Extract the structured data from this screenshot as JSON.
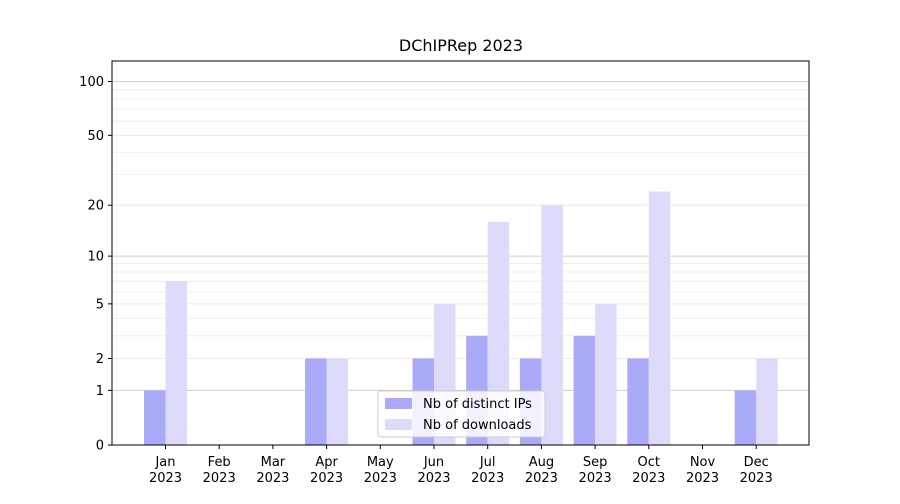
{
  "chart_data": {
    "type": "bar",
    "title": "DChIPRep 2023",
    "xlabel": "",
    "ylabel": "",
    "y_scale": "symlog",
    "ylim": [
      0,
      130
    ],
    "y_ticks": [
      {
        "value": 0,
        "label": "0"
      },
      {
        "value": 1,
        "label": "1"
      },
      {
        "value": 2,
        "label": "2"
      },
      {
        "value": 5,
        "label": "5"
      },
      {
        "value": 10,
        "label": "10"
      },
      {
        "value": 20,
        "label": "20"
      },
      {
        "value": 50,
        "label": "50"
      },
      {
        "value": 100,
        "label": "100"
      }
    ],
    "categories": [
      [
        "Jan",
        "2023"
      ],
      [
        "Feb",
        "2023"
      ],
      [
        "Mar",
        "2023"
      ],
      [
        "Apr",
        "2023"
      ],
      [
        "May",
        "2023"
      ],
      [
        "Jun",
        "2023"
      ],
      [
        "Jul",
        "2023"
      ],
      [
        "Aug",
        "2023"
      ],
      [
        "Sep",
        "2023"
      ],
      [
        "Oct",
        "2023"
      ],
      [
        "Nov",
        "2023"
      ],
      [
        "Dec",
        "2023"
      ]
    ],
    "series": [
      {
        "name": "Nb of distinct IPs",
        "color": "#aaaaf8",
        "values": [
          1,
          0,
          0,
          2,
          0,
          2,
          3,
          2,
          3,
          2,
          0,
          1
        ]
      },
      {
        "name": "Nb of downloads",
        "color": "#dcdcfa",
        "values": [
          7,
          0,
          0,
          2,
          0,
          5,
          16,
          20,
          5,
          24,
          0,
          2
        ]
      }
    ],
    "grid": true,
    "legend_position": "bottom-center"
  }
}
